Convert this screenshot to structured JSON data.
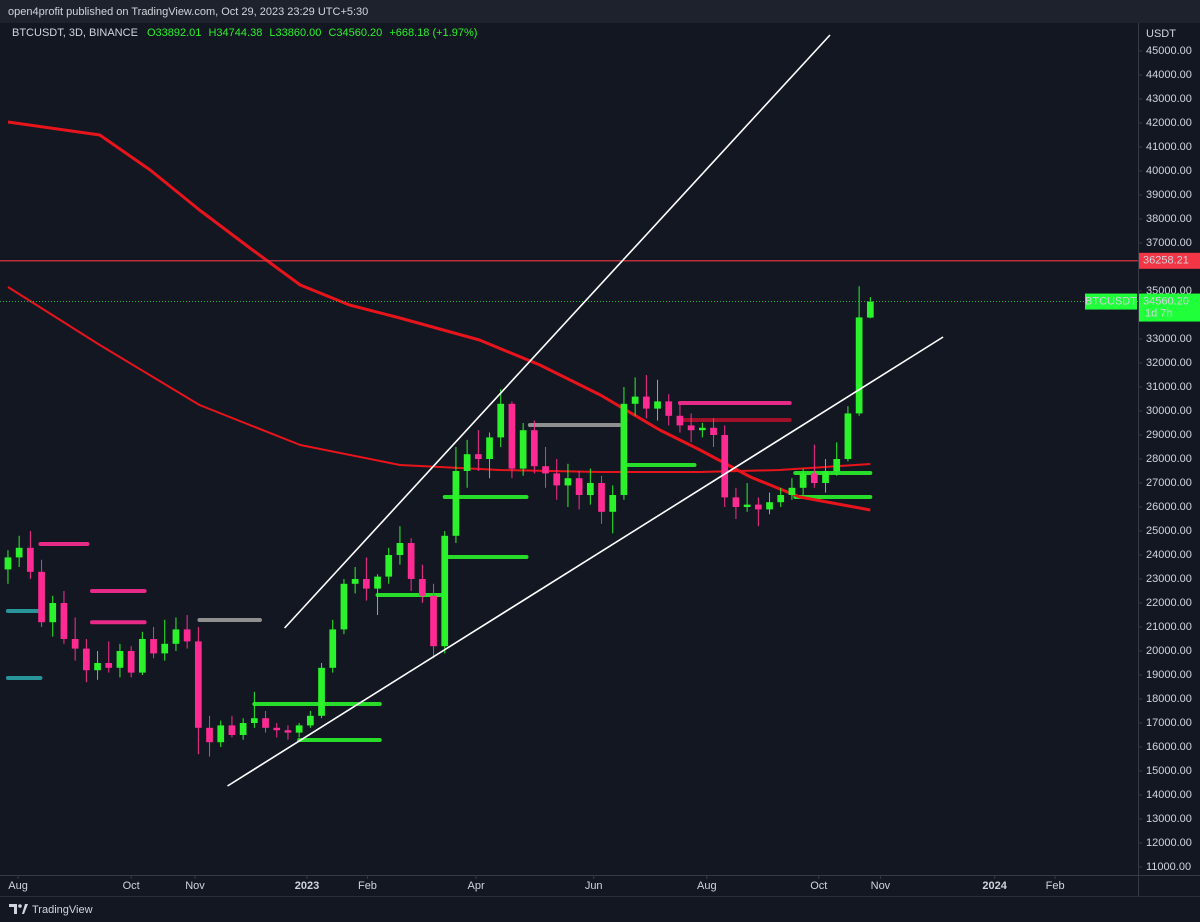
{
  "header": {
    "publisher": "open4profit published on TradingView.com, Oct 29, 2023 23:29 UTC+5:30"
  },
  "chart_data": {
    "type": "candlestick",
    "symbol": "BTCUSDT, 3D, BINANCE",
    "ohlc_labels": {
      "open": "O33892.01",
      "high": "H34744.38",
      "low": "L33860.00",
      "close": "C34560.20",
      "change": "+668.18 (+1.97%)"
    },
    "currency": "USDT",
    "up_color": "#2bf22b",
    "down_color": "#ff2b92",
    "grid": false,
    "open": [
      23400,
      23900,
      24300,
      23300,
      21200,
      22000,
      20500,
      20100,
      19200,
      19500,
      19300,
      20000,
      19100,
      20500,
      19900,
      20300,
      20900,
      20400,
      16800,
      16200,
      16900,
      16500,
      17000,
      17200,
      16800,
      16700,
      16600,
      16900,
      17300,
      19300,
      20900,
      22800,
      23000,
      22600,
      23100,
      24000,
      24500,
      23000,
      22300,
      20200,
      24800,
      27500,
      28200,
      28000,
      28900,
      30300,
      27600,
      29200,
      27700,
      27400,
      26900,
      27200,
      26500,
      27000,
      25800,
      26500,
      30300,
      30600,
      30100,
      30400,
      29800,
      29400,
      29200,
      29300,
      29000,
      26400,
      26000,
      26100,
      25900,
      26200,
      26500,
      26800,
      27400,
      27000,
      27500,
      28000,
      29900,
      33892.01
    ],
    "high": [
      24200,
      24800,
      25000,
      23800,
      22300,
      22500,
      21400,
      20500,
      20000,
      20400,
      20300,
      20200,
      20800,
      21000,
      21300,
      21400,
      21500,
      21000,
      17300,
      17100,
      17300,
      17200,
      18300,
      17500,
      17000,
      16900,
      17000,
      17500,
      19500,
      21300,
      23000,
      23500,
      23900,
      23200,
      24300,
      25200,
      24700,
      23600,
      22800,
      25000,
      28500,
      28800,
      29200,
      29100,
      30900,
      30400,
      29500,
      29600,
      28500,
      28000,
      27800,
      27500,
      27600,
      27300,
      26900,
      31000,
      31400,
      31500,
      31300,
      30700,
      30300,
      29900,
      29500,
      29700,
      29400,
      26800,
      27000,
      26400,
      26600,
      26800,
      27200,
      27600,
      28600,
      28000,
      28700,
      30200,
      35200,
      34744.38
    ],
    "low": [
      22800,
      23500,
      23000,
      21000,
      20600,
      20300,
      19600,
      18700,
      18800,
      19100,
      18900,
      18900,
      19000,
      19700,
      19600,
      20000,
      20100,
      15700,
      15600,
      16000,
      16400,
      16300,
      16800,
      16600,
      16400,
      16300,
      16400,
      16800,
      17200,
      19100,
      20700,
      22400,
      22100,
      21500,
      22800,
      23600,
      22500,
      22000,
      19700,
      19900,
      24500,
      26800,
      27500,
      27200,
      28500,
      27200,
      27300,
      27400,
      26800,
      26300,
      26000,
      25900,
      26100,
      25300,
      24900,
      26300,
      29800,
      29700,
      29600,
      29400,
      29100,
      28700,
      28900,
      28500,
      26000,
      25500,
      25800,
      25200,
      25700,
      26000,
      26300,
      26500,
      26800,
      26600,
      27300,
      27900,
      29800,
      33860
    ],
    "close": [
      23900,
      24300,
      23300,
      21200,
      22000,
      20500,
      20100,
      19200,
      19500,
      19300,
      20000,
      19100,
      20500,
      19900,
      20300,
      20900,
      20400,
      16800,
      16200,
      16900,
      16500,
      17000,
      17200,
      16800,
      16700,
      16600,
      16900,
      17300,
      19300,
      20900,
      22800,
      23000,
      22600,
      23100,
      24000,
      24500,
      23000,
      22300,
      20200,
      24800,
      27500,
      28200,
      28000,
      28900,
      30300,
      27600,
      29200,
      27700,
      27400,
      26900,
      27200,
      26500,
      27000,
      25800,
      26500,
      30300,
      30600,
      30100,
      30400,
      29800,
      29400,
      29200,
      29300,
      29000,
      26400,
      26000,
      26100,
      25900,
      26200,
      26500,
      26800,
      27400,
      27000,
      27500,
      28000,
      29900,
      33900,
      34560.2
    ],
    "xlim": [
      -0.71,
      100.9
    ],
    "xticks": [
      {
        "value": 0.9,
        "label": "Aug"
      },
      {
        "value": 11,
        "label": "Oct"
      },
      {
        "value": 16.7,
        "label": "Nov"
      },
      {
        "value": 26.7,
        "label": "2023"
      },
      {
        "value": 32.1,
        "label": "Feb"
      },
      {
        "value": 41.8,
        "label": "Apr"
      },
      {
        "value": 52.3,
        "label": "Jun"
      },
      {
        "value": 62.4,
        "label": "Aug"
      },
      {
        "value": 72.4,
        "label": "Oct"
      },
      {
        "value": 77.9,
        "label": "Nov"
      },
      {
        "value": 88.1,
        "label": "2024"
      },
      {
        "value": 93.5,
        "label": "Feb"
      }
    ],
    "ylim": [
      10667,
      46125
    ],
    "yticks": [
      {
        "value": 11000,
        "label": "11000.00"
      },
      {
        "value": 12000,
        "label": "12000.00"
      },
      {
        "value": 13000,
        "label": "13000.00"
      },
      {
        "value": 14000,
        "label": "14000.00"
      },
      {
        "value": 15000,
        "label": "15000.00"
      },
      {
        "value": 16000,
        "label": "16000.00"
      },
      {
        "value": 17000,
        "label": "17000.00"
      },
      {
        "value": 18000,
        "label": "18000.00"
      },
      {
        "value": 19000,
        "label": "19000.00"
      },
      {
        "value": 20000,
        "label": "20000.00"
      },
      {
        "value": 21000,
        "label": "21000.00"
      },
      {
        "value": 22000,
        "label": "22000.00"
      },
      {
        "value": 23000,
        "label": "23000.00"
      },
      {
        "value": 24000,
        "label": "24000.00"
      },
      {
        "value": 25000,
        "label": "25000.00"
      },
      {
        "value": 26000,
        "label": "26000.00"
      },
      {
        "value": 27000,
        "label": "27000.00"
      },
      {
        "value": 28000,
        "label": "28000.00"
      },
      {
        "value": 29000,
        "label": "29000.00"
      },
      {
        "value": 30000,
        "label": "30000.00"
      },
      {
        "value": 31000,
        "label": "31000.00"
      },
      {
        "value": 32000,
        "label": "32000.00"
      },
      {
        "value": 33000,
        "label": "33000.00"
      },
      {
        "value": 34000,
        "label": "34000.00"
      },
      {
        "value": 35000,
        "label": "35000.00"
      },
      {
        "value": 37000,
        "label": "37000.00"
      },
      {
        "value": 38000,
        "label": "38000.00"
      },
      {
        "value": 39000,
        "label": "39000.00"
      },
      {
        "value": 40000,
        "label": "40000.00"
      },
      {
        "value": 41000,
        "label": "41000.00"
      },
      {
        "value": 42000,
        "label": "42000.00"
      },
      {
        "value": 43000,
        "label": "43000.00"
      },
      {
        "value": 44000,
        "label": "44000.00"
      },
      {
        "value": 45000,
        "label": "45000.00"
      }
    ],
    "moving_averages": [
      {
        "color": "#e8141c",
        "x": [
          0,
          8.2,
          12.7,
          17.1,
          21.6,
          26.1,
          30.5,
          35,
          42.1,
          47.5,
          52.9,
          58.2,
          61.8,
          66.3,
          70.7,
          77
        ],
        "values": [
          42042,
          41500,
          40042,
          38375,
          36792,
          35250,
          34417,
          33875,
          32958,
          31917,
          30667,
          29208,
          28375,
          27250,
          26417,
          25875
        ]
      },
      {
        "color": "#e8141c",
        "x": [
          0,
          8.2,
          17.1,
          26.1,
          35,
          43.9,
          52.9,
          61.8,
          68.9,
          77
        ],
        "values": [
          35167,
          32750,
          30250,
          28583,
          27750,
          27542,
          27458,
          27458,
          27542,
          27792
        ]
      }
    ],
    "trendlines": [
      {
        "color": "#ffffff",
        "x": [
          24.7,
          73.4
        ],
        "values": [
          20958,
          45667
        ]
      },
      {
        "color": "#ffffff",
        "x": [
          19.6,
          83.5
        ],
        "values": [
          14375,
          33083
        ]
      }
    ],
    "levels": [
      {
        "color": "#ff2b92",
        "x": [
          2.9,
          7.1
        ],
        "value": 24458
      },
      {
        "color": "#2aa3a8",
        "x": [
          0,
          2.9
        ],
        "value": 21667
      },
      {
        "color": "#2aa3a8",
        "x": [
          0,
          2.9
        ],
        "value": 18875
      },
      {
        "color": "#ff2b92",
        "x": [
          7.5,
          12.2
        ],
        "value": 22500
      },
      {
        "color": "#ff2b92",
        "x": [
          7.5,
          12.2
        ],
        "value": 21200
      },
      {
        "color": "#9e9e9e",
        "x": [
          17.1,
          22.5
        ],
        "value": 21292
      },
      {
        "color": "#2bf22b",
        "x": [
          22,
          33.2
        ],
        "value": 17792
      },
      {
        "color": "#2bf22b",
        "x": [
          26,
          33.2
        ],
        "value": 16292
      },
      {
        "color": "#2bf22b",
        "x": [
          33,
          38.6
        ],
        "value": 22333
      },
      {
        "color": "#2bf22b",
        "x": [
          39,
          46.3
        ],
        "value": 26417
      },
      {
        "color": "#2bf22b",
        "x": [
          39,
          46.3
        ],
        "value": 23917
      },
      {
        "color": "#9e9e9e",
        "x": [
          46.6,
          54.6
        ],
        "value": 29417
      },
      {
        "color": "#2bf22b",
        "x": [
          55.3,
          61.3
        ],
        "value": 27750
      },
      {
        "color": "#ff2b92",
        "x": [
          60,
          69.8
        ],
        "value": 30333
      },
      {
        "color": "#b0102a",
        "x": [
          60,
          69.8
        ],
        "value": 29625
      },
      {
        "color": "#2bf22b",
        "x": [
          70.3,
          77
        ],
        "value": 26417
      },
      {
        "color": "#2bf22b",
        "x": [
          70.3,
          77
        ],
        "value": 27417
      }
    ],
    "hline": {
      "value": 36258.21,
      "color": "#f23645"
    },
    "last_price": {
      "value": 34560.2,
      "value_label": "34560.20",
      "name": "BTCUSDT",
      "countdown": "1d 7h",
      "color": "#1fff3a"
    }
  },
  "footer": {
    "brand": "TradingView"
  }
}
